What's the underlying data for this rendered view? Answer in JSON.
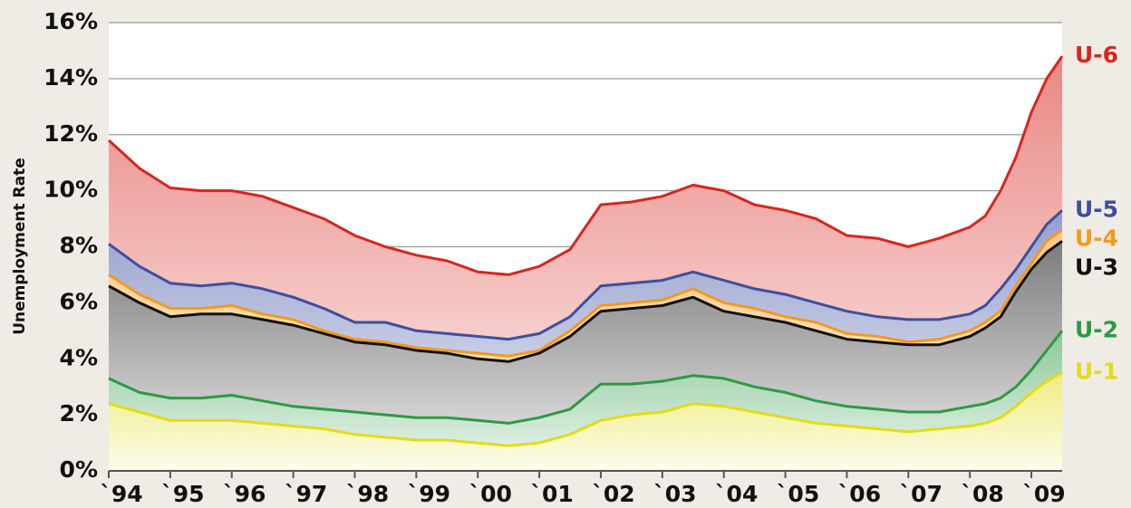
{
  "chart_data": {
    "type": "line",
    "y_label": "Unemployment Rate",
    "x": [
      1994,
      1994.5,
      1995,
      1995.5,
      1996,
      1996.5,
      1997,
      1997.5,
      1998,
      1998.5,
      1999,
      1999.5,
      2000,
      2000.5,
      2001,
      2001.5,
      2002,
      2002.5,
      2003,
      2003.5,
      2004,
      2004.5,
      2005,
      2005.5,
      2006,
      2006.5,
      2007,
      2007.5,
      2008,
      2008.25,
      2008.5,
      2008.75,
      2009,
      2009.25,
      2009.5
    ],
    "xlim": [
      1994,
      2009.5
    ],
    "xticks": [
      {
        "value": 1994,
        "label": "`94"
      },
      {
        "value": 1995,
        "label": "`95"
      },
      {
        "value": 1996,
        "label": "`96"
      },
      {
        "value": 1997,
        "label": "`97"
      },
      {
        "value": 1998,
        "label": "`98"
      },
      {
        "value": 1999,
        "label": "`99"
      },
      {
        "value": 2000,
        "label": "`00"
      },
      {
        "value": 2001,
        "label": "`01"
      },
      {
        "value": 2002,
        "label": "`02"
      },
      {
        "value": 2003,
        "label": "`03"
      },
      {
        "value": 2004,
        "label": "`04"
      },
      {
        "value": 2005,
        "label": "`05"
      },
      {
        "value": 2006,
        "label": "`06"
      },
      {
        "value": 2007,
        "label": "`07"
      },
      {
        "value": 2008,
        "label": "`08"
      },
      {
        "value": 2009,
        "label": "`09"
      }
    ],
    "ylim": [
      0,
      16
    ],
    "yticks": [
      {
        "value": 0,
        "label": "0%"
      },
      {
        "value": 2,
        "label": "2%"
      },
      {
        "value": 4,
        "label": "4%"
      },
      {
        "value": 6,
        "label": "6%"
      },
      {
        "value": 8,
        "label": "8%"
      },
      {
        "value": 10,
        "label": "10%"
      },
      {
        "value": 12,
        "label": "12%"
      },
      {
        "value": 14,
        "label": "14%"
      },
      {
        "value": 16,
        "label": "16%"
      }
    ],
    "grid": true,
    "series": [
      {
        "name": "U-6",
        "color": "#d7261e",
        "values": [
          11.8,
          10.8,
          10.1,
          10.0,
          10.0,
          9.8,
          9.4,
          9.0,
          8.4,
          8.0,
          7.7,
          7.5,
          7.1,
          7.0,
          7.3,
          7.9,
          9.5,
          9.6,
          9.8,
          10.2,
          10.0,
          9.5,
          9.3,
          9.0,
          8.4,
          8.3,
          8.0,
          8.3,
          8.7,
          9.1,
          10.0,
          11.2,
          12.8,
          14.0,
          14.8
        ]
      },
      {
        "name": "U-5",
        "color": "#3c4fa0",
        "values": [
          8.1,
          7.3,
          6.7,
          6.6,
          6.7,
          6.5,
          6.2,
          5.8,
          5.3,
          5.3,
          5.0,
          4.9,
          4.8,
          4.7,
          4.9,
          5.5,
          6.6,
          6.7,
          6.8,
          7.1,
          6.8,
          6.5,
          6.3,
          6.0,
          5.7,
          5.5,
          5.4,
          5.4,
          5.6,
          5.9,
          6.5,
          7.2,
          8.0,
          8.8,
          9.3
        ]
      },
      {
        "name": "U-4",
        "color": "#f39a1e",
        "values": [
          7.0,
          6.3,
          5.8,
          5.8,
          5.9,
          5.6,
          5.4,
          5.0,
          4.7,
          4.6,
          4.4,
          4.3,
          4.2,
          4.1,
          4.3,
          5.0,
          5.9,
          6.0,
          6.1,
          6.5,
          6.0,
          5.8,
          5.5,
          5.3,
          4.9,
          4.8,
          4.6,
          4.7,
          5.0,
          5.3,
          5.7,
          6.6,
          7.4,
          8.2,
          8.6
        ]
      },
      {
        "name": "U-3",
        "color": "#111111",
        "values": [
          6.6,
          6.0,
          5.5,
          5.6,
          5.6,
          5.4,
          5.2,
          4.9,
          4.6,
          4.5,
          4.3,
          4.2,
          4.0,
          3.9,
          4.2,
          4.8,
          5.7,
          5.8,
          5.9,
          6.2,
          5.7,
          5.5,
          5.3,
          5.0,
          4.7,
          4.6,
          4.5,
          4.5,
          4.8,
          5.1,
          5.5,
          6.4,
          7.2,
          7.8,
          8.2
        ]
      },
      {
        "name": "U-2",
        "color": "#2c9a44",
        "values": [
          3.3,
          2.8,
          2.6,
          2.6,
          2.7,
          2.5,
          2.3,
          2.2,
          2.1,
          2.0,
          1.9,
          1.9,
          1.8,
          1.7,
          1.9,
          2.2,
          3.1,
          3.1,
          3.2,
          3.4,
          3.3,
          3.0,
          2.8,
          2.5,
          2.3,
          2.2,
          2.1,
          2.1,
          2.3,
          2.4,
          2.6,
          3.0,
          3.6,
          4.3,
          5.0
        ]
      },
      {
        "name": "U-1",
        "color": "#e3dc16",
        "values": [
          2.4,
          2.1,
          1.8,
          1.8,
          1.8,
          1.7,
          1.6,
          1.5,
          1.3,
          1.2,
          1.1,
          1.1,
          1.0,
          0.9,
          1.0,
          1.3,
          1.8,
          2.0,
          2.1,
          2.4,
          2.3,
          2.1,
          1.9,
          1.7,
          1.6,
          1.5,
          1.4,
          1.5,
          1.6,
          1.7,
          1.9,
          2.3,
          2.8,
          3.2,
          3.5
        ]
      }
    ]
  }
}
